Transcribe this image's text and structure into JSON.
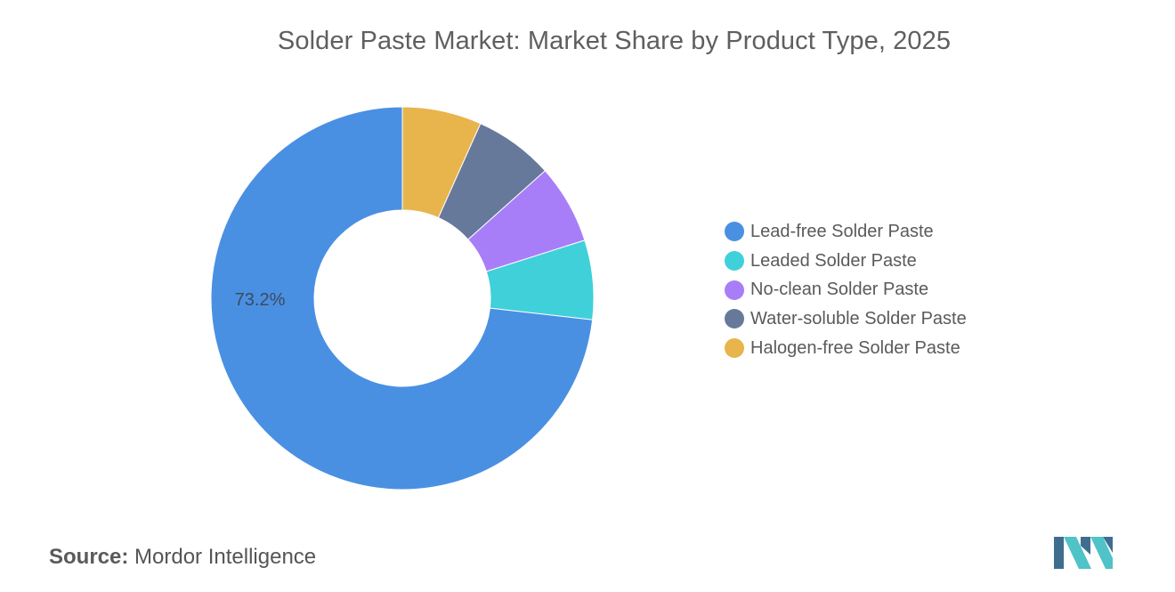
{
  "chart_data": {
    "type": "pie",
    "variant": "donut",
    "title": "Solder Paste Market: Market Share by Product Type, 2025",
    "categories": [
      "Lead-free Solder Paste",
      "Leaded Solder Paste",
      "No-clean Solder Paste",
      "Water-soluble Solder Paste",
      "Halogen-free Solder Paste"
    ],
    "values": [
      73.2,
      6.7,
      6.7,
      6.7,
      6.7
    ],
    "colors": [
      "#4a90e2",
      "#40d0da",
      "#a87ef8",
      "#66799b",
      "#e8b44c"
    ],
    "data_labels": [
      "73.2%",
      "",
      "",
      "",
      ""
    ],
    "legend_position": "right"
  },
  "source": {
    "label": "Source:",
    "text": "Mordor Intelligence"
  },
  "logo": {
    "icon": "mordor-intelligence-logo",
    "colors": [
      "#3f6d8f",
      "#4fc3c8"
    ]
  }
}
